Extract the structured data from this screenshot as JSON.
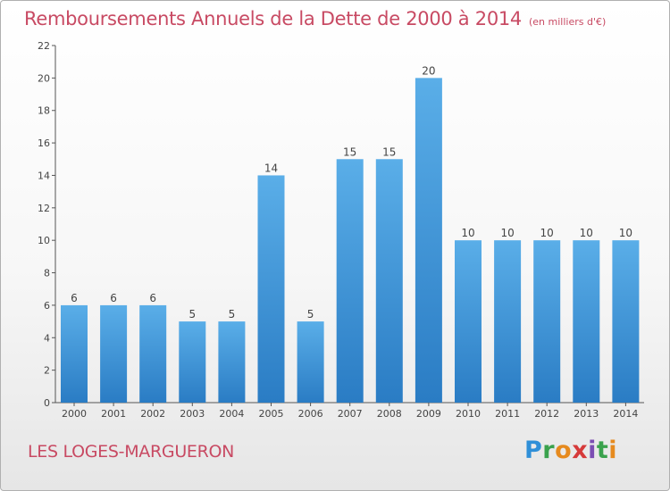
{
  "title": "Remboursements Annuels de la Dette de 2000 à 2014",
  "title_unit": "(en milliers d'€)",
  "commune": "LES LOGES-MARGUERON",
  "logo": "Proxiti",
  "colors": {
    "title": "#c84a63",
    "bar_top": "#5aaee8",
    "bar_bottom": "#2a7cc4"
  },
  "chart_data": {
    "type": "bar",
    "categories": [
      "2000",
      "2001",
      "2002",
      "2003",
      "2004",
      "2005",
      "2006",
      "2007",
      "2008",
      "2009",
      "2010",
      "2011",
      "2012",
      "2013",
      "2014"
    ],
    "values": [
      6,
      6,
      6,
      5,
      5,
      14,
      5,
      15,
      15,
      20,
      10,
      10,
      10,
      10,
      10
    ],
    "ylim": [
      0,
      22
    ],
    "yticks": [
      0,
      2,
      4,
      6,
      8,
      10,
      12,
      14,
      16,
      18,
      20,
      22
    ],
    "grid": false,
    "legend": "none"
  }
}
